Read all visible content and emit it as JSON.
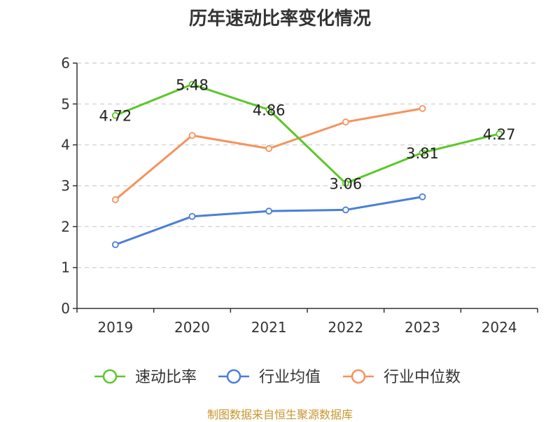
{
  "chart_data": {
    "type": "line",
    "title": "历年速动比率变化情况",
    "categories": [
      "2019",
      "2020",
      "2021",
      "2022",
      "2023",
      "2024"
    ],
    "ylim": [
      0,
      6
    ],
    "yticks": [
      0,
      1,
      2,
      3,
      4,
      5,
      6
    ],
    "grid": true,
    "legend_position": "bottom",
    "series": [
      {
        "name": "速动比率",
        "color": "#5cc72a",
        "values": [
          4.72,
          5.48,
          4.86,
          3.06,
          3.81,
          4.27
        ],
        "labels": [
          "4.72",
          "5.48",
          "4.86",
          "3.06",
          "3.81",
          "4.27"
        ]
      },
      {
        "name": "行业均值",
        "color": "#4a7fd6",
        "values": [
          1.56,
          2.25,
          2.38,
          2.41,
          2.73,
          null
        ]
      },
      {
        "name": "行业中位数",
        "color": "#f4935d",
        "values": [
          2.66,
          4.23,
          3.91,
          4.56,
          4.89,
          null
        ]
      }
    ]
  },
  "footer": {
    "text": "制图数据来自恒生聚源数据库",
    "color": "#c8962e"
  }
}
